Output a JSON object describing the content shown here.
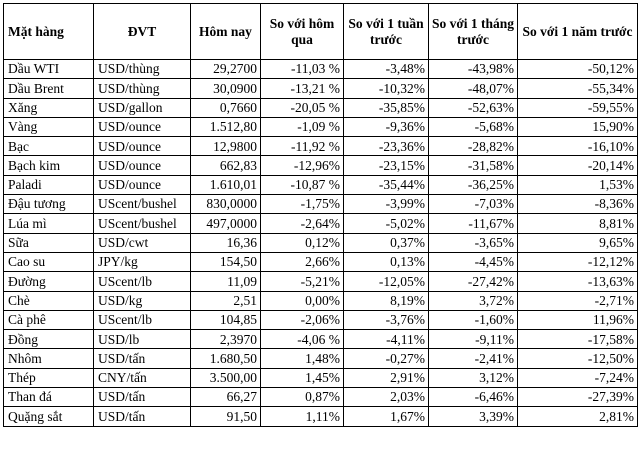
{
  "table": {
    "headers": [
      "Mặt hàng",
      "ĐVT",
      "Hôm nay",
      "So với hôm qua",
      "So với 1 tuần trước",
      "So với 1 tháng trước",
      "So với 1 năm trước"
    ],
    "rows": [
      [
        "Dầu WTI",
        "USD/thùng",
        "29,2700",
        "-11,03 %",
        "-3,48%",
        "-43,98%",
        "-50,12%"
      ],
      [
        "Dầu Brent",
        "USD/thùng",
        "30,0900",
        "-13,21 %",
        "-10,32%",
        "-48,07%",
        "-55,34%"
      ],
      [
        "Xăng",
        "USD/gallon",
        "0,7660",
        "-20,05 %",
        "-35,85%",
        "-52,63%",
        "-59,55%"
      ],
      [
        "Vàng",
        "USD/ounce",
        "1.512,80",
        "-1,09 %",
        "-9,36%",
        "-5,68%",
        "15,90%"
      ],
      [
        "Bạc",
        "USD/ounce",
        "12,9800",
        "-11,92 %",
        "-23,36%",
        "-28,82%",
        "-16,10%"
      ],
      [
        "Bạch kim",
        "USD/ounce",
        "662,83",
        "-12,96%",
        "-23,15%",
        "-31,58%",
        "-20,14%"
      ],
      [
        "Paladi",
        "USD/ounce",
        "1.610,01",
        "-10,87 %",
        "-35,44%",
        "-36,25%",
        "1,53%"
      ],
      [
        "Đậu tương",
        "UScent/bushel",
        "830,0000",
        "-1,75%",
        "-3,99%",
        "-7,03%",
        "-8,36%"
      ],
      [
        "Lúa mì",
        "UScent/bushel",
        "497,0000",
        "-2,64%",
        "-5,02%",
        "-11,67%",
        "8,81%"
      ],
      [
        "Sữa",
        "USD/cwt",
        "16,36",
        "0,12%",
        "0,37%",
        "-3,65%",
        "9,65%"
      ],
      [
        "Cao su",
        "JPY/kg",
        "154,50",
        "2,66%",
        "0,13%",
        "-4,45%",
        "-12,12%"
      ],
      [
        "Đường",
        "UScent/lb",
        "11,09",
        "-5,21%",
        "-12,05%",
        "-27,42%",
        "-13,63%"
      ],
      [
        "Chè",
        "USD/kg",
        "2,51",
        "0,00%",
        "8,19%",
        "3,72%",
        "-2,71%"
      ],
      [
        "Cà phê",
        "UScent/lb",
        "104,85",
        "-2,06%",
        "-3,76%",
        "-1,60%",
        "11,96%"
      ],
      [
        "Đồng",
        "USD/lb",
        "2,3970",
        "-4,06 %",
        "-4,11%",
        "-9,11%",
        "-17,58%"
      ],
      [
        "Nhôm",
        "USD/tấn",
        "1.680,50",
        "1,48%",
        "-0,27%",
        "-2,41%",
        "-12,50%"
      ],
      [
        "Thép",
        "CNY/tấn",
        "3.500,00",
        "1,45%",
        "2,91%",
        "3,12%",
        "-7,24%"
      ],
      [
        "Than đá",
        "USD/tấn",
        "66,27",
        "0,87%",
        "2,03%",
        "-6,46%",
        "-27,39%"
      ],
      [
        "Quặng sắt",
        "USD/tấn",
        "91,50",
        "1,11%",
        "1,67%",
        "3,39%",
        "2,81%"
      ]
    ]
  }
}
